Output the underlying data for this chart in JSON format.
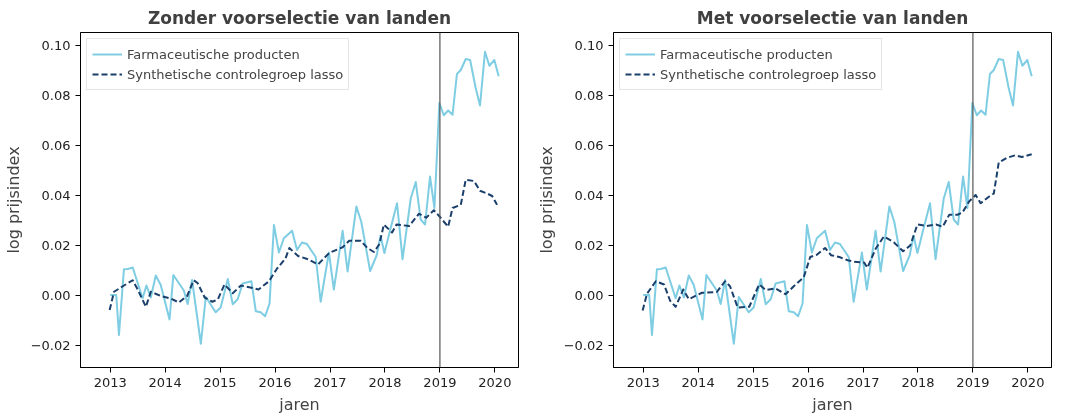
{
  "chart_data": [
    {
      "type": "line",
      "title": "Zonder voorselectie van landen",
      "xlabel": "jaren",
      "ylabel": "log prijsindex",
      "xlim": [
        2012.46,
        2020.43
      ],
      "ylim": [
        -0.029,
        0.105
      ],
      "xticks": [
        2013,
        2014,
        2015,
        2016,
        2017,
        2018,
        2019,
        2020
      ],
      "yticks": [
        {
          "value": -0.02,
          "label": "−0.02"
        },
        {
          "value": 0,
          "label": "0.00"
        },
        {
          "value": 0.02,
          "label": "0.02"
        },
        {
          "value": 0.04,
          "label": "0.04"
        },
        {
          "value": 0.06,
          "label": "0.06"
        },
        {
          "value": 0.08,
          "label": "0.08"
        },
        {
          "value": 0.1,
          "label": "0.10"
        }
      ],
      "grid": false,
      "legend": "top left",
      "ref_lines": [
        {
          "axis": "x",
          "value": 2019,
          "color": "#555555"
        }
      ],
      "series": [
        {
          "name": "Farmaceutische producten",
          "color": "#7ecde3",
          "line_style": "solid",
          "x": [
            2013.0,
            2013.11,
            2013.16,
            2013.25,
            2013.32,
            2013.41,
            2013.59,
            2013.66,
            2013.74,
            2013.83,
            2013.92,
            2014.08,
            2014.15,
            2014.34,
            2014.41,
            2014.49,
            2014.65,
            2014.74,
            2014.92,
            2015.01,
            2015.14,
            2015.23,
            2015.32,
            2015.41,
            2015.57,
            2015.65,
            2015.74,
            2015.82,
            2015.9,
            2015.98,
            2016.07,
            2016.16,
            2016.31,
            2016.4,
            2016.49,
            2016.58,
            2016.74,
            2016.83,
            2016.98,
            2017.07,
            2017.23,
            2017.32,
            2017.48,
            2017.57,
            2017.73,
            2017.85,
            2017.92,
            2017.99,
            2018.08,
            2018.22,
            2018.32,
            2018.47,
            2018.56,
            2018.65,
            2018.73,
            2018.82,
            2018.9,
            2018.99,
            2019.07,
            2019.15,
            2019.23,
            2019.31,
            2019.38,
            2019.47,
            2019.55,
            2019.65,
            2019.73,
            2019.82,
            2019.9,
            2019.99,
            2020.07
          ],
          "values": [
            0.0,
            0.0,
            -0.016,
            0.0103,
            0.0104,
            0.011,
            -0.0013,
            0.0038,
            -0.001,
            0.0078,
            0.004,
            -0.0098,
            0.008,
            0.0018,
            -0.0036,
            0.006,
            -0.0195,
            -0.0008,
            -0.0069,
            -0.005,
            0.0064,
            -0.0037,
            -0.0017,
            0.0046,
            0.0055,
            -0.0065,
            -0.0069,
            -0.0085,
            -0.0034,
            0.028,
            0.017,
            0.0227,
            0.0257,
            0.018,
            0.021,
            0.0204,
            0.0152,
            -0.0027,
            0.017,
            0.0022,
            0.0257,
            0.0094,
            0.0354,
            0.0292,
            0.0096,
            0.0159,
            0.0237,
            0.0168,
            0.0247,
            0.0367,
            0.0143,
            0.0387,
            0.0452,
            0.0302,
            0.0282,
            0.0474,
            0.0348,
            0.0768,
            0.0719,
            0.0738,
            0.0721,
            0.0884,
            0.09,
            0.0944,
            0.094,
            0.0829,
            0.0758,
            0.0973,
            0.0917,
            0.094,
            0.0875
          ]
        },
        {
          "name": "Synthetische controlegroep lasso",
          "color": "#1a3f6b",
          "line_style": "dashed",
          "x": [
            2012.99,
            2013.07,
            2013.23,
            2013.41,
            2013.5,
            2013.65,
            2013.74,
            2013.92,
            2014.1,
            2014.25,
            2014.4,
            2014.52,
            2014.59,
            2014.72,
            2014.86,
            2014.96,
            2015.08,
            2015.23,
            2015.38,
            2015.53,
            2015.7,
            2015.89,
            2016.04,
            2016.19,
            2016.26,
            2016.42,
            2016.6,
            2016.78,
            2016.99,
            2017.23,
            2017.35,
            2017.56,
            2017.68,
            2017.8,
            2017.9,
            2017.98,
            2018.13,
            2018.21,
            2018.44,
            2018.62,
            2018.75,
            2018.89,
            2018.99,
            2019.15,
            2019.23,
            2019.38,
            2019.47,
            2019.62,
            2019.73,
            2019.86,
            2019.95,
            2020.04
          ],
          "values": [
            -0.006,
            0.0013,
            0.0035,
            0.0059,
            0.0022,
            -0.0047,
            0.0013,
            -0.0004,
            -0.0014,
            -0.003,
            -0.0004,
            0.0059,
            0.0048,
            -0.001,
            -0.0027,
            -0.0017,
            0.0042,
            0.0007,
            0.0038,
            0.0031,
            0.0022,
            0.0055,
            0.0107,
            0.0146,
            0.0188,
            0.0156,
            0.0143,
            0.0122,
            0.0169,
            0.0191,
            0.0217,
            0.0217,
            0.0188,
            0.0172,
            0.0204,
            0.0282,
            0.025,
            0.0282,
            0.0276,
            0.0325,
            0.0309,
            0.0339,
            0.0315,
            0.0273,
            0.0348,
            0.0361,
            0.0461,
            0.0456,
            0.0417,
            0.0406,
            0.0396,
            0.0361
          ]
        }
      ]
    },
    {
      "type": "line",
      "title": "Met voorselectie van landen",
      "xlabel": "jaren",
      "ylabel": "log prijsindex",
      "xlim": [
        2012.46,
        2020.43
      ],
      "ylim": [
        -0.029,
        0.105
      ],
      "xticks": [
        2013,
        2014,
        2015,
        2016,
        2017,
        2018,
        2019,
        2020
      ],
      "yticks": [
        {
          "value": -0.02,
          "label": "−0.02"
        },
        {
          "value": 0,
          "label": "0.00"
        },
        {
          "value": 0.02,
          "label": "0.02"
        },
        {
          "value": 0.04,
          "label": "0.04"
        },
        {
          "value": 0.06,
          "label": "0.06"
        },
        {
          "value": 0.08,
          "label": "0.08"
        },
        {
          "value": 0.1,
          "label": "0.10"
        }
      ],
      "grid": false,
      "legend": "top left",
      "ref_lines": [
        {
          "axis": "x",
          "value": 2019,
          "color": "#555555"
        }
      ],
      "series": [
        {
          "name": "Farmaceutische producten",
          "color": "#7ecde3",
          "line_style": "solid",
          "x": [
            2013.0,
            2013.11,
            2013.16,
            2013.25,
            2013.32,
            2013.41,
            2013.59,
            2013.66,
            2013.74,
            2013.83,
            2013.92,
            2014.08,
            2014.15,
            2014.34,
            2014.41,
            2014.49,
            2014.65,
            2014.74,
            2014.92,
            2015.01,
            2015.14,
            2015.23,
            2015.32,
            2015.41,
            2015.57,
            2015.65,
            2015.74,
            2015.82,
            2015.9,
            2015.98,
            2016.07,
            2016.16,
            2016.31,
            2016.4,
            2016.49,
            2016.58,
            2016.74,
            2016.83,
            2016.98,
            2017.07,
            2017.23,
            2017.32,
            2017.48,
            2017.57,
            2017.73,
            2017.85,
            2017.92,
            2017.99,
            2018.08,
            2018.22,
            2018.32,
            2018.47,
            2018.56,
            2018.65,
            2018.73,
            2018.82,
            2018.9,
            2018.99,
            2019.07,
            2019.15,
            2019.23,
            2019.31,
            2019.38,
            2019.47,
            2019.55,
            2019.65,
            2019.73,
            2019.82,
            2019.9,
            2019.99,
            2020.07
          ],
          "values": [
            0.0,
            0.0,
            -0.016,
            0.0103,
            0.0104,
            0.011,
            -0.0013,
            0.0038,
            -0.001,
            0.0078,
            0.004,
            -0.0098,
            0.008,
            0.0018,
            -0.0036,
            0.006,
            -0.0195,
            -0.0008,
            -0.0069,
            -0.005,
            0.0064,
            -0.0037,
            -0.0017,
            0.0046,
            0.0055,
            -0.0065,
            -0.0069,
            -0.0085,
            -0.0034,
            0.028,
            0.017,
            0.0227,
            0.0257,
            0.018,
            0.021,
            0.0204,
            0.0152,
            -0.0027,
            0.017,
            0.0022,
            0.0257,
            0.0094,
            0.0354,
            0.0292,
            0.0096,
            0.0159,
            0.0237,
            0.0168,
            0.0247,
            0.0367,
            0.0143,
            0.0387,
            0.0452,
            0.0302,
            0.0282,
            0.0474,
            0.0348,
            0.0768,
            0.0719,
            0.0738,
            0.0721,
            0.0884,
            0.09,
            0.0944,
            0.094,
            0.0829,
            0.0758,
            0.0973,
            0.0917,
            0.094,
            0.0875
          ]
        },
        {
          "name": "Synthetische controlegroep lasso",
          "color": "#1a3f6b",
          "line_style": "dashed",
          "x": [
            2012.99,
            2013.07,
            2013.23,
            2013.38,
            2013.49,
            2013.59,
            2013.73,
            2013.83,
            2014.07,
            2014.34,
            2014.49,
            2014.58,
            2014.72,
            2014.93,
            2015.11,
            2015.23,
            2015.41,
            2015.59,
            2015.74,
            2015.92,
            2016.04,
            2016.16,
            2016.31,
            2016.42,
            2016.57,
            2016.72,
            2016.84,
            2017.02,
            2017.08,
            2017.23,
            2017.38,
            2017.56,
            2017.73,
            2017.86,
            2017.99,
            2018.16,
            2018.33,
            2018.45,
            2018.57,
            2018.72,
            2018.81,
            2018.93,
            2019.05,
            2019.14,
            2019.29,
            2019.38,
            2019.47,
            2019.62,
            2019.77,
            2019.89,
            2020.07
          ],
          "values": [
            -0.0062,
            0.0005,
            0.0055,
            0.0042,
            -0.0023,
            -0.0047,
            0.0022,
            -0.0017,
            0.0009,
            0.0012,
            0.0055,
            0.0035,
            -0.005,
            -0.0047,
            0.0042,
            0.002,
            0.0026,
            0.0003,
            0.0035,
            0.007,
            0.0152,
            0.0161,
            0.0188,
            0.0159,
            0.0152,
            0.0139,
            0.0133,
            0.013,
            0.0109,
            0.0185,
            0.0234,
            0.0211,
            0.0175,
            0.0198,
            0.0282,
            0.0276,
            0.0282,
            0.0273,
            0.0321,
            0.0321,
            0.033,
            0.0374,
            0.04,
            0.0367,
            0.0393,
            0.0406,
            0.053,
            0.0549,
            0.0559,
            0.0552,
            0.0563
          ]
        }
      ]
    }
  ]
}
